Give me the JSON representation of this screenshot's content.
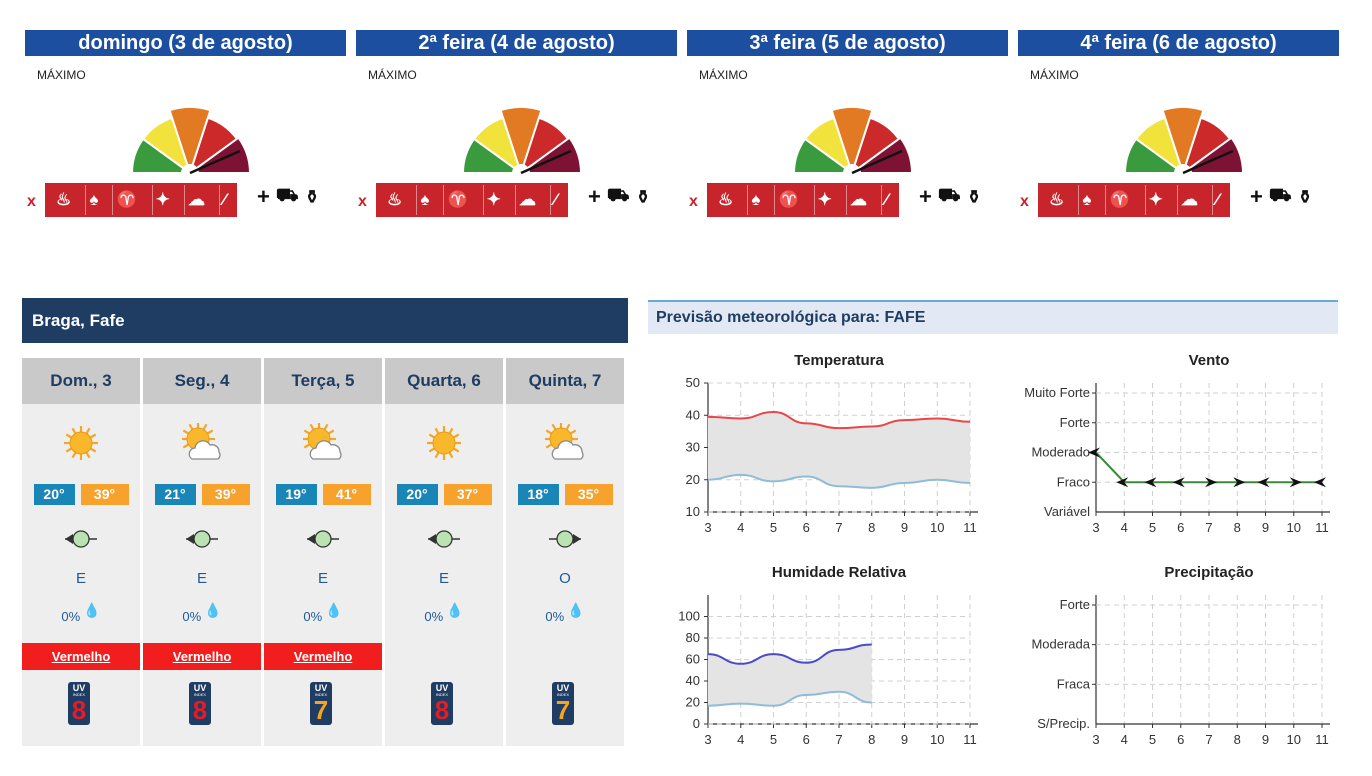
{
  "fire_risk": {
    "days": [
      {
        "header": "domingo (3 de agosto)",
        "level": "MÁXIMO"
      },
      {
        "header": "2ª feira (4 de agosto)",
        "level": "MÁXIMO"
      },
      {
        "header": "3ª feira (5 de agosto)",
        "level": "MÁXIMO"
      },
      {
        "header": "4ª feira (6 de agosto)",
        "level": "MÁXIMO"
      }
    ],
    "gauge_colors": [
      "#3a9a3e",
      "#f1e33c",
      "#e17a22",
      "#cc2a2a",
      "#7e1235"
    ],
    "ban_prefix": "x",
    "allow_prefix": "+",
    "banned_icons": [
      "bonfire-icon",
      "fire-icon",
      "barbecue-icon",
      "firework-icon",
      "smoke-extractor-icon",
      "cigarette-icon"
    ],
    "allowed_icons": [
      "tractor-icon",
      "fire-extinguisher-icon"
    ]
  },
  "location": {
    "title": "Braga, Fafe",
    "days": [
      {
        "name": "Dom., 3",
        "icon": "sun-icon",
        "tmin": "20°",
        "tmax": "39°",
        "wind": "E",
        "rain": "0%",
        "alert": "Vermelho",
        "uv": "8"
      },
      {
        "name": "Seg., 4",
        "icon": "sun-cloud-icon",
        "tmin": "21°",
        "tmax": "39°",
        "wind": "E",
        "rain": "0%",
        "alert": "Vermelho",
        "uv": "8"
      },
      {
        "name": "Terça, 5",
        "icon": "sun-cloud-icon",
        "tmin": "19°",
        "tmax": "41°",
        "wind": "E",
        "rain": "0%",
        "alert": "Vermelho",
        "uv": "7"
      },
      {
        "name": "Quarta, 6",
        "icon": "sun-icon",
        "tmin": "20°",
        "tmax": "37°",
        "wind": "E",
        "rain": "0%",
        "alert": "",
        "uv": "8"
      },
      {
        "name": "Quinta, 7",
        "icon": "sun-cloud-icon",
        "tmin": "18°",
        "tmax": "35°",
        "wind": "O",
        "rain": "0%",
        "alert": "",
        "uv": "7"
      }
    ],
    "uv_label": "UV",
    "uv_sublabel": "INDEX",
    "colors": {
      "uv8": "#e11d2a",
      "uv7": "#f6a31d",
      "alert": "#f21d1d"
    }
  },
  "meteo": {
    "title": "Previsão meteorológica para: FAFE",
    "chart_data": [
      {
        "type": "area",
        "title": "Temperatura",
        "x": [
          3,
          4,
          5,
          6,
          7,
          8,
          9,
          10,
          11
        ],
        "ylim": [
          10,
          50
        ],
        "yticks": [
          10,
          20,
          30,
          40,
          50
        ],
        "series": [
          {
            "name": "max",
            "color": "#e8474a",
            "x": [
              3,
              4,
              5,
              6,
              7,
              8,
              9,
              10,
              11
            ],
            "values": [
              39.5,
              39,
              41,
              37.5,
              36,
              36.5,
              38.5,
              39,
              38
            ]
          },
          {
            "name": "min",
            "color": "#8fbcd9",
            "x": [
              3,
              4,
              5,
              6,
              7,
              8,
              9,
              10,
              11
            ],
            "values": [
              20,
              21.5,
              19.5,
              21,
              18,
              17.5,
              19,
              20,
              19
            ]
          }
        ]
      },
      {
        "type": "line",
        "title": "Vento",
        "x": [
          3,
          4,
          5,
          6,
          7,
          8,
          9,
          10,
          11
        ],
        "ycategories": [
          "Variável",
          "Fraco",
          "Moderado",
          "Forte",
          "Muito Forte"
        ],
        "series": [
          {
            "color": "#3a8a3a",
            "x": [
              3,
              4,
              5,
              6,
              7,
              8,
              9,
              10,
              11
            ],
            "values": [
              2,
              1,
              1,
              1,
              1,
              1,
              1,
              1,
              1
            ],
            "direction": [
              "E",
              "E",
              "E",
              "E",
              "O",
              "O",
              "E",
              "O",
              "E"
            ]
          }
        ]
      },
      {
        "type": "area",
        "title": "Humidade Relativa",
        "x": [
          3,
          4,
          5,
          6,
          7,
          8,
          9,
          10,
          11
        ],
        "ylim": [
          0,
          120
        ],
        "yticks": [
          0,
          20,
          40,
          60,
          80,
          100
        ],
        "series": [
          {
            "name": "max",
            "color": "#4b4bc8",
            "x": [
              3,
              4,
              5,
              6,
              7,
              8
            ],
            "values": [
              65,
              56,
              65,
              57,
              69,
              74
            ]
          },
          {
            "name": "min",
            "color": "#8fbcd9",
            "x": [
              3,
              4,
              5,
              6,
              7,
              8
            ],
            "values": [
              17,
              19,
              17,
              27,
              30,
              20
            ]
          }
        ]
      },
      {
        "type": "line",
        "title": "Precipitação",
        "x": [
          3,
          4,
          5,
          6,
          7,
          8,
          9,
          10,
          11
        ],
        "ycategories": [
          "S/Precip.",
          "Fraca",
          "Moderada",
          "Forte"
        ],
        "series": []
      }
    ]
  }
}
